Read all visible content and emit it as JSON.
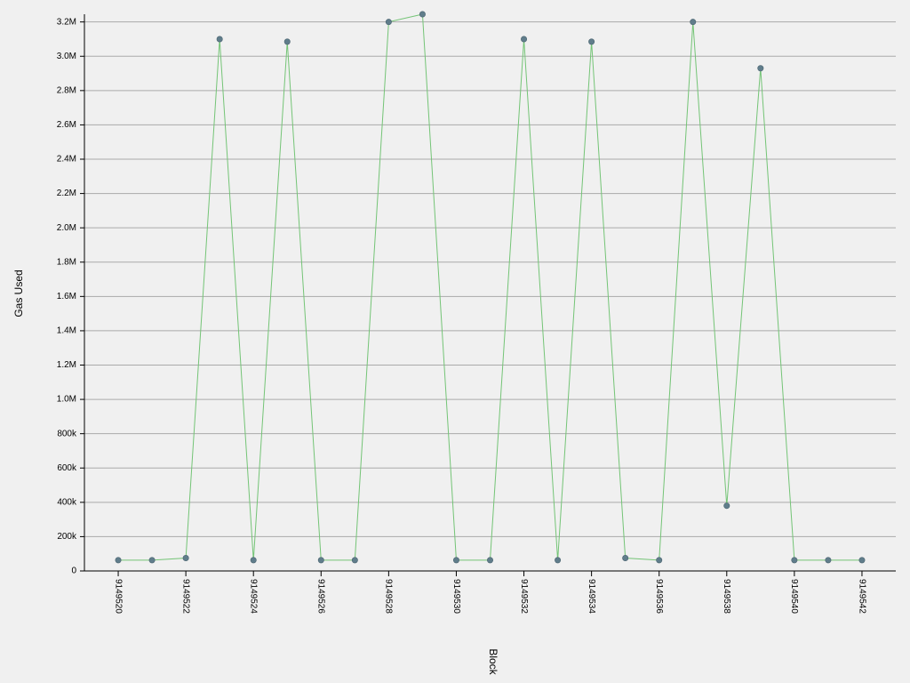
{
  "chart_data": {
    "type": "line",
    "xlabel": "Block",
    "ylabel": "Gas Used",
    "x": [
      9149520,
      9149521,
      9149522,
      9149523,
      9149524,
      9149525,
      9149526,
      9149527,
      9149528,
      9149529,
      9149530,
      9149531,
      9149532,
      9149533,
      9149534,
      9149535,
      9149536,
      9149537,
      9149538,
      9149539,
      9149540,
      9149541,
      9149542
    ],
    "series": [
      {
        "values": [
          63000,
          63000,
          75000,
          3100000,
          63000,
          3085000,
          63000,
          63000,
          3200000,
          3245000,
          63000,
          63000,
          3100000,
          63000,
          3085000,
          75000,
          63000,
          3200000,
          380000,
          2930000,
          63000,
          63000,
          63000
        ]
      }
    ],
    "xticks": [
      9149520,
      9149522,
      9149524,
      9149526,
      9149528,
      9149530,
      9149532,
      9149534,
      9149536,
      9149538,
      9149540,
      9149542
    ],
    "xlim": [
      9149519,
      9149543
    ],
    "yticks": [
      0,
      200000,
      400000,
      600000,
      800000,
      1000000,
      1200000,
      1400000,
      1600000,
      1800000,
      2000000,
      2200000,
      2400000,
      2600000,
      2800000,
      3000000,
      3200000
    ],
    "ytick_labels": [
      "0",
      "200k",
      "400k",
      "600k",
      "800k",
      "1.0M",
      "1.2M",
      "1.4M",
      "1.6M",
      "1.8M",
      "2.0M",
      "2.2M",
      "2.4M",
      "2.6M",
      "2.8M",
      "3.0M",
      "3.2M"
    ],
    "ylim": [
      0,
      3245000
    ],
    "grid": true,
    "colors": {
      "line": "#74c476",
      "marker": "#607d8b",
      "grid": "#aaaaaa",
      "axis": "#000000"
    }
  }
}
